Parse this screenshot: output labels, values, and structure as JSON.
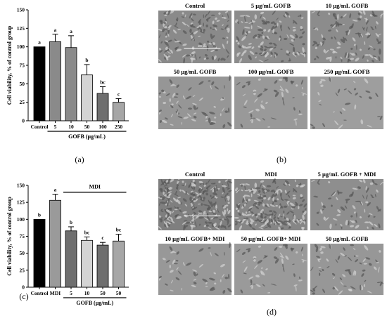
{
  "panels": {
    "a": "(a)",
    "b": "(b)",
    "c": "(c)",
    "d": "(d)"
  },
  "chart_data": [
    {
      "id": "a",
      "type": "bar",
      "ylabel": "Cell viability, % of control group",
      "xlabel": "GOFB (μg/mL)",
      "ylim": [
        0,
        150
      ],
      "yticks": [
        0,
        25,
        50,
        75,
        100,
        125,
        150
      ],
      "categories": [
        "Control",
        "5",
        "10",
        "50",
        "100",
        "250"
      ],
      "values": [
        100,
        107,
        99,
        62,
        37,
        25
      ],
      "errors": [
        0,
        10,
        16,
        14,
        9,
        5
      ],
      "significance": [
        "a",
        "a",
        "a",
        "b",
        "bc",
        "c"
      ],
      "colors": [
        "#000000",
        "#8a8a8a",
        "#8a8a8a",
        "#d4d4d4",
        "#6e6e6e",
        "#a6a6a6"
      ]
    },
    {
      "id": "c",
      "type": "bar",
      "ylabel": "Cell viability, % of control group",
      "xlabel": "GOFB (μg/mL)",
      "bracket_label": "MDI",
      "ylim": [
        0,
        150
      ],
      "yticks": [
        0,
        25,
        50,
        75,
        100,
        125,
        150
      ],
      "categories": [
        "Control",
        "MDI",
        "5",
        "10",
        "50",
        "50"
      ],
      "values": [
        100,
        128,
        83,
        69,
        62,
        68
      ],
      "errors": [
        0,
        9,
        6,
        5,
        4,
        10
      ],
      "significance": [
        "b",
        "a",
        "b",
        "bc",
        "c",
        "bc"
      ],
      "colors": [
        "#000000",
        "#9a9a9a",
        "#6e6e6e",
        "#d4d4d4",
        "#6e6e6e",
        "#a6a6a6"
      ]
    }
  ],
  "micrographs_b": {
    "labels": [
      "Control",
      "5 μg/mL GOFB",
      "10 μg/mL GOFB",
      "50 μg/mL GOFB",
      "100 μg/mL GOFB",
      "250 μg/mL GOFB"
    ],
    "scale_text": "200 μm"
  },
  "micrographs_d": {
    "labels": [
      "Control",
      "MDI",
      "5 μg/mL GOFB + MDI",
      "10 μg/mL GOFB+ MDI",
      "50 μg/mL GOFB+ MDI",
      "50 μg/mL GOFB"
    ],
    "scale_text": "200 μm"
  }
}
